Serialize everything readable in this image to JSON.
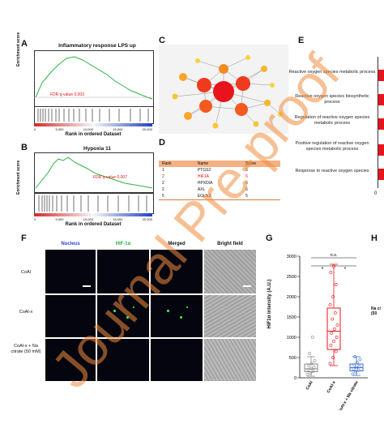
{
  "panels": {
    "A": {
      "letter": "A",
      "title": "Inflammatory response LPS up",
      "ylabel": "Enrichment score",
      "xlabel": "Rank in ordered Dataset",
      "fdr": "FDR q-value 0.003",
      "x_ticks": [
        "0",
        "5,000",
        "10,000",
        "15,000",
        "20,000"
      ]
    },
    "B": {
      "letter": "B",
      "title": "Hypoxia 11",
      "ylabel": "Enrichment score",
      "xlabel": "Rank in ordered Dataset",
      "fdr": "FDR q-value 0.007",
      "x_ticks": [
        "0",
        "5,000",
        "10,000",
        "15,000",
        "20,000"
      ]
    },
    "C": {
      "letter": "C"
    },
    "D": {
      "letter": "D",
      "headers": [
        "Rank",
        "Name",
        "Score"
      ],
      "rows": [
        [
          "1",
          "PTGS2",
          "6"
        ],
        [
          "2",
          "HIF1A",
          "6"
        ],
        [
          "2",
          "HPXDIA",
          "6"
        ],
        [
          "2",
          "AXL",
          "6"
        ],
        [
          "5",
          "EGLN3",
          "5"
        ]
      ]
    },
    "E": {
      "letter": "E",
      "terms": [
        "Reactive oxygen species metabolic process",
        "Reactive oxygen species biosynthetic process",
        "Regulation of reactive oxygen species metabolic process",
        "Positive regulation of reactive oxygen species metabolic process",
        "Response to reactive oxygen species"
      ],
      "axis_start": "0"
    },
    "F": {
      "letter": "F",
      "columns": [
        "Nucleus",
        "HIF-1α",
        "Merged",
        "Bright field"
      ],
      "rows": [
        "CoAl",
        "CoAl-x",
        "CoAl-x + Na citrate (50 mM)"
      ]
    },
    "G": {
      "letter": "G",
      "ylabel": "HIF1α intensity (A.U.)",
      "categories": [
        "CoAl",
        "CoAl-x",
        "CoAl-x + Na citrate"
      ],
      "y_ticks": [
        "0",
        "500",
        "1000",
        "1500",
        "2000",
        "2500",
        "3000"
      ],
      "sig_ns": "n.s.",
      "sig_star": "*"
    },
    "H": {
      "letter": "H",
      "fragment": "Na ci (50"
    }
  },
  "watermark": "Journal Pre-proof",
  "chart_data": [
    {
      "type": "box",
      "panel": "G",
      "ylabel": "HIF1α intensity (A.U.)",
      "ylim": [
        0,
        3000
      ],
      "categories": [
        "CoAl",
        "CoAl-x",
        "CoAl-x + Na citrate"
      ],
      "colors": [
        "#888888",
        "#e8141b",
        "#3a6fd0"
      ],
      "boxes": [
        {
          "q1": 150,
          "median": 220,
          "q3": 340,
          "whisker_low": 40,
          "whisker_high": 520
        },
        {
          "q1": 700,
          "median": 1150,
          "q3": 1720,
          "whisker_low": 300,
          "whisker_high": 2800
        },
        {
          "q1": 170,
          "median": 250,
          "q3": 340,
          "whisker_low": 60,
          "whisker_high": 520
        }
      ],
      "points": [
        [
          80,
          120,
          160,
          200,
          230,
          260,
          300,
          350,
          420,
          600,
          1000
        ],
        [
          350,
          500,
          650,
          800,
          900,
          1000,
          1100,
          1200,
          1300,
          1450,
          1600,
          1800,
          2000,
          2300,
          2600,
          2750
        ],
        [
          90,
          150,
          190,
          220,
          250,
          280,
          310,
          380,
          450,
          520
        ]
      ]
    },
    {
      "type": "bar",
      "panel": "E",
      "categories": [
        "Reactive oxygen species metabolic process",
        "Reactive oxygen species biosynthetic process",
        "Regulation of reactive oxygen species metabolic process",
        "Positive regulation of reactive oxygen species metabolic process",
        "Response to reactive oxygen species"
      ],
      "values": [
        1,
        1,
        1,
        1,
        1
      ],
      "color": "#e8141b"
    }
  ]
}
